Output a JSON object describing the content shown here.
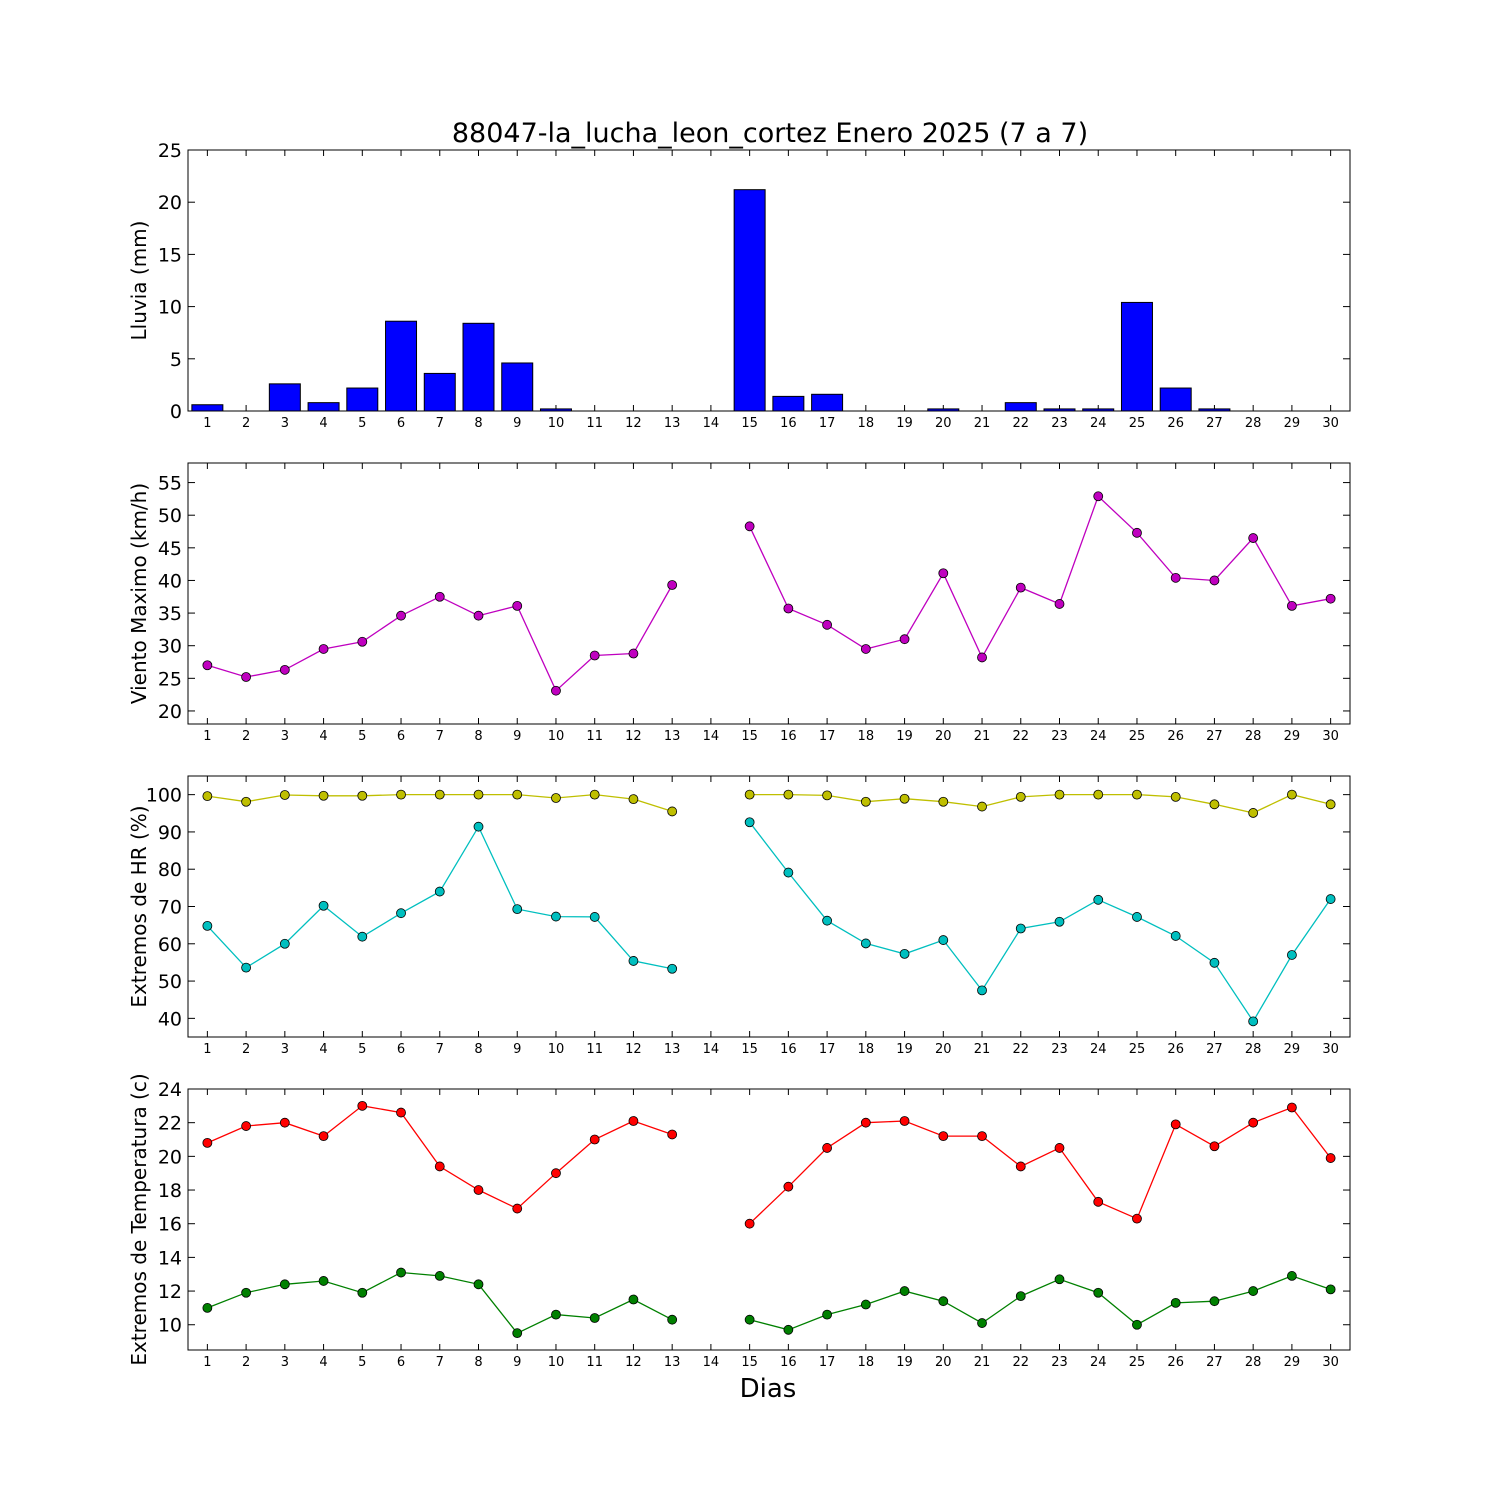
{
  "chart_data": [
    {
      "type": "bar",
      "title": "88047-la_lucha_leon_cortez Enero 2025  (7 a 7)",
      "ylabel": "Lluvia (mm)",
      "xlabel": "",
      "ylim": [
        0,
        25
      ],
      "yticks": [
        0,
        5,
        10,
        15,
        20,
        25
      ],
      "categories": [
        1,
        2,
        3,
        4,
        5,
        6,
        7,
        8,
        9,
        10,
        11,
        12,
        13,
        14,
        15,
        16,
        17,
        18,
        19,
        20,
        21,
        22,
        23,
        24,
        25,
        26,
        27,
        28,
        29,
        30
      ],
      "series": [
        {
          "color": "#0000ff",
          "values": [
            0.6,
            0.0,
            2.6,
            0.8,
            2.2,
            8.6,
            3.6,
            8.4,
            4.6,
            0.2,
            0.0,
            0.0,
            0.0,
            null,
            21.2,
            1.4,
            1.6,
            0.0,
            0.0,
            0.2,
            0.0,
            0.8,
            0.2,
            0.2,
            10.4,
            2.2,
            0.2,
            0.0,
            0.0,
            0.0
          ]
        }
      ],
      "grid": false
    },
    {
      "type": "line",
      "title": "",
      "ylabel": "Viento Maximo (km/h)",
      "xlabel": "",
      "ylim": [
        18,
        58
      ],
      "yticks": [
        20,
        25,
        30,
        35,
        40,
        45,
        50,
        55
      ],
      "categories": [
        1,
        2,
        3,
        4,
        5,
        6,
        7,
        8,
        9,
        10,
        11,
        12,
        13,
        14,
        15,
        16,
        17,
        18,
        19,
        20,
        21,
        22,
        23,
        24,
        25,
        26,
        27,
        28,
        29,
        30
      ],
      "series": [
        {
          "color": "#bf00bf",
          "values": [
            27.0,
            25.2,
            26.3,
            29.5,
            30.6,
            34.6,
            37.5,
            34.6,
            36.1,
            23.1,
            28.5,
            28.8,
            39.3,
            null,
            48.3,
            35.7,
            33.2,
            29.5,
            31.0,
            41.1,
            28.2,
            38.9,
            36.4,
            52.9,
            47.3,
            40.4,
            40.0,
            46.5,
            36.1,
            37.2
          ]
        }
      ],
      "grid": false
    },
    {
      "type": "line",
      "title": "",
      "ylabel": "Extremos de HR (%)",
      "xlabel": "",
      "ylim": [
        35,
        105
      ],
      "yticks": [
        40,
        50,
        60,
        70,
        80,
        90,
        100
      ],
      "categories": [
        1,
        2,
        3,
        4,
        5,
        6,
        7,
        8,
        9,
        10,
        11,
        12,
        13,
        14,
        15,
        16,
        17,
        18,
        19,
        20,
        21,
        22,
        23,
        24,
        25,
        26,
        27,
        28,
        29,
        30
      ],
      "series": [
        {
          "color": "#bfbf00",
          "values": [
            99.6,
            98.1,
            99.9,
            99.7,
            99.7,
            100.0,
            100.0,
            100.0,
            100.0,
            99.1,
            100.0,
            98.8,
            95.5,
            null,
            100.0,
            100.0,
            99.8,
            98.1,
            98.9,
            98.1,
            96.8,
            99.4,
            100.0,
            100.0,
            100.0,
            99.4,
            97.4,
            95.1,
            100.0,
            97.4
          ]
        },
        {
          "color": "#00bfbf",
          "values": [
            64.8,
            53.6,
            60.0,
            70.2,
            61.9,
            68.2,
            74.0,
            91.4,
            69.3,
            67.3,
            67.2,
            55.4,
            53.3,
            null,
            92.6,
            79.1,
            66.2,
            60.1,
            57.3,
            61.0,
            47.5,
            64.1,
            65.9,
            71.8,
            67.2,
            62.1,
            54.9,
            39.2,
            57.0,
            72.0
          ]
        }
      ],
      "grid": false
    },
    {
      "type": "line",
      "title": "",
      "ylabel": "Extremos de Temperatura (c)",
      "xlabel": "Dias",
      "ylim": [
        8.5,
        24
      ],
      "yticks": [
        10,
        12,
        14,
        16,
        18,
        20,
        22,
        24
      ],
      "categories": [
        1,
        2,
        3,
        4,
        5,
        6,
        7,
        8,
        9,
        10,
        11,
        12,
        13,
        14,
        15,
        16,
        17,
        18,
        19,
        20,
        21,
        22,
        23,
        24,
        25,
        26,
        27,
        28,
        29,
        30
      ],
      "series": [
        {
          "color": "#ff0000",
          "values": [
            20.8,
            21.8,
            22.0,
            21.2,
            23.0,
            22.6,
            19.4,
            18.0,
            16.9,
            19.0,
            21.0,
            22.1,
            21.3,
            null,
            16.0,
            18.2,
            20.5,
            22.0,
            22.1,
            21.2,
            21.2,
            19.4,
            20.5,
            17.3,
            16.3,
            21.9,
            20.6,
            22.0,
            22.9,
            19.9
          ]
        },
        {
          "color": "#008000",
          "values": [
            11.0,
            11.9,
            12.4,
            12.6,
            11.9,
            13.1,
            12.9,
            12.4,
            9.5,
            10.6,
            10.4,
            11.5,
            10.3,
            null,
            10.3,
            9.7,
            10.6,
            11.2,
            12.0,
            11.4,
            10.1,
            11.7,
            12.7,
            11.9,
            10.0,
            11.3,
            11.4,
            12.0,
            12.9,
            12.1
          ]
        }
      ],
      "grid": false
    }
  ]
}
